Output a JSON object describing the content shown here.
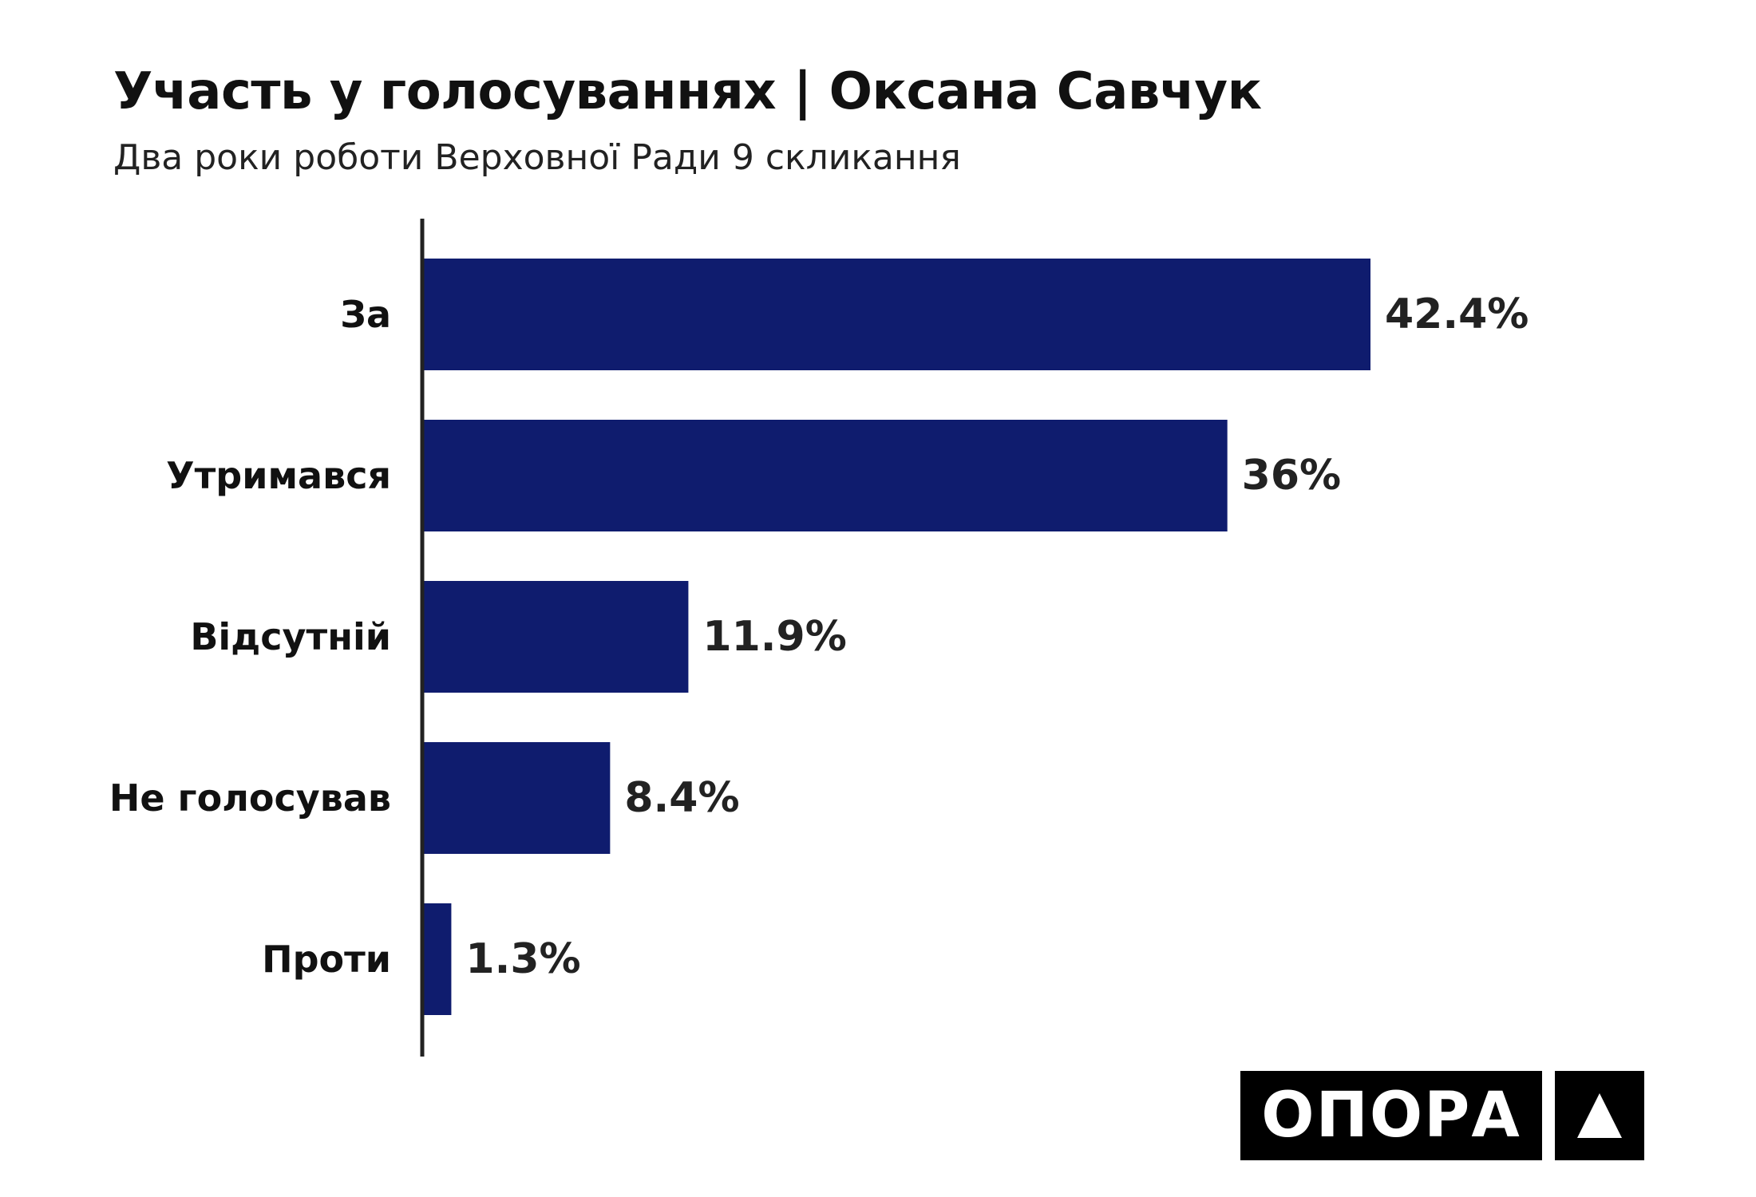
{
  "chart_data": {
    "type": "bar",
    "orientation": "horizontal",
    "title": "Участь у голосуваннях | Оксана Савчук",
    "subtitle": "Два роки роботи Верховної Ради 9 скликання",
    "categories": [
      "За",
      "Утримався",
      "Відсутній",
      "Не голосував",
      "Проти"
    ],
    "values": [
      42.4,
      36,
      11.9,
      8.4,
      1.3
    ],
    "value_labels": [
      "42.4%",
      "36%",
      "11.9%",
      "8.4%",
      "1.3%"
    ],
    "xlabel": "",
    "ylabel": "",
    "xlim": [
      0,
      42.4
    ],
    "grid": false,
    "bar_color": "#0f1c6e"
  },
  "branding": {
    "logo_text": "ОПОРА",
    "logo_mark": "triangle-icon"
  }
}
